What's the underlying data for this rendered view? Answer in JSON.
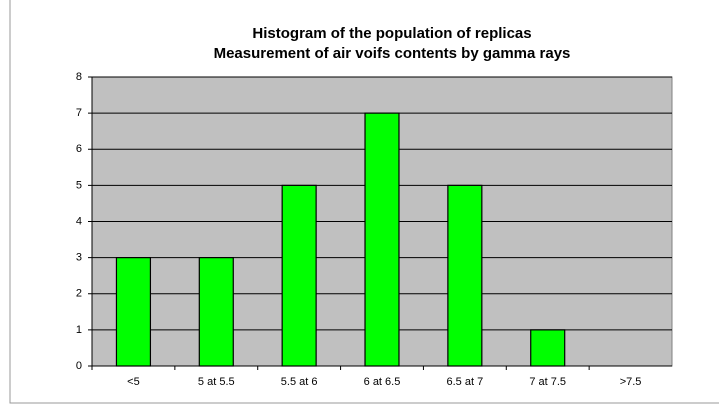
{
  "chart_data": {
    "type": "bar",
    "title": "Histogram of the population of replicas",
    "subtitle": "Measurement of air voifs contents by gamma rays",
    "categories": [
      "<5",
      "5 at 5.5",
      "5.5 at 6",
      "6 at 6.5",
      "6.5 at 7",
      "7 at 7.5",
      ">7.5"
    ],
    "values": [
      3,
      3,
      5,
      7,
      5,
      1,
      0
    ],
    "color": "#00ff00",
    "ylim": [
      0,
      8
    ],
    "yticks": [
      0,
      1,
      2,
      3,
      4,
      5,
      6,
      7,
      8
    ],
    "grid": true
  }
}
